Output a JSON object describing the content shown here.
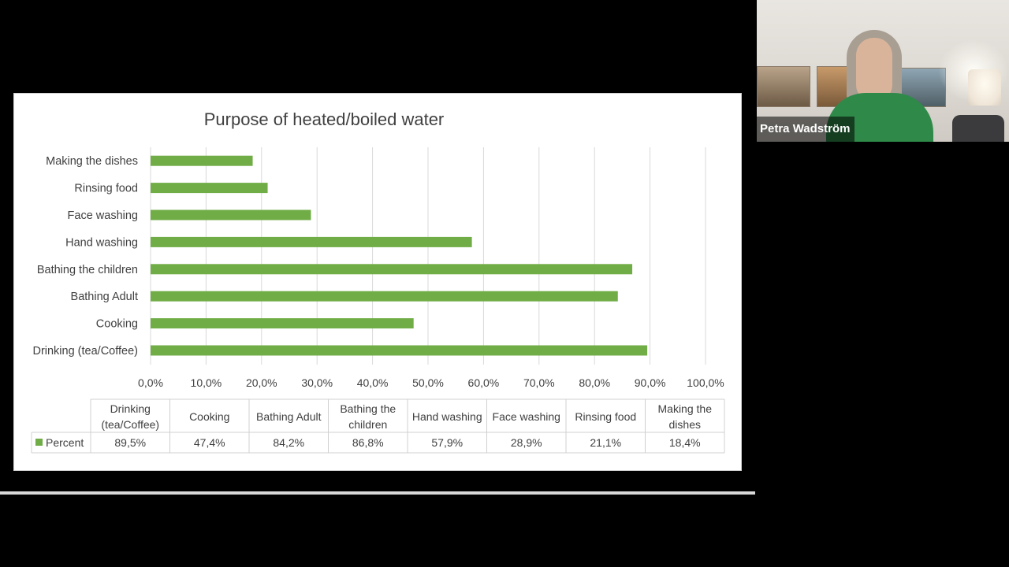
{
  "speaker": {
    "name": "Petra Wadström"
  },
  "chart_data": {
    "type": "bar",
    "orientation": "horizontal",
    "title": "Purpose of heated/boiled water",
    "categories": [
      "Drinking (tea/Coffee)",
      "Cooking",
      "Bathing Adult",
      "Bathing the children",
      "Hand washing",
      "Face washing",
      "Rinsing food",
      "Making the dishes"
    ],
    "series": [
      {
        "name": "Percent",
        "values": [
          89.5,
          47.4,
          84.2,
          86.8,
          57.9,
          28.9,
          21.1,
          18.4
        ],
        "labels": [
          "89,5%",
          "47,4%",
          "84,2%",
          "86,8%",
          "57,9%",
          "28,9%",
          "21,1%",
          "18,4%"
        ],
        "color": "#70ad47"
      }
    ],
    "table_headers": [
      [
        "Drinking",
        "(tea/Coffee)"
      ],
      [
        "Cooking"
      ],
      [
        "Bathing Adult"
      ],
      [
        "Bathing the",
        "children"
      ],
      [
        "Hand washing"
      ],
      [
        "Face washing"
      ],
      [
        "Rinsing food"
      ],
      [
        "Making the",
        "dishes"
      ]
    ],
    "x_ticks": [
      "0,0%",
      "10,0%",
      "20,0%",
      "30,0%",
      "40,0%",
      "50,0%",
      "60,0%",
      "70,0%",
      "80,0%",
      "90,0%",
      "100,0%"
    ],
    "xlim": [
      0,
      100
    ],
    "grid": true,
    "legend": "data-table"
  }
}
